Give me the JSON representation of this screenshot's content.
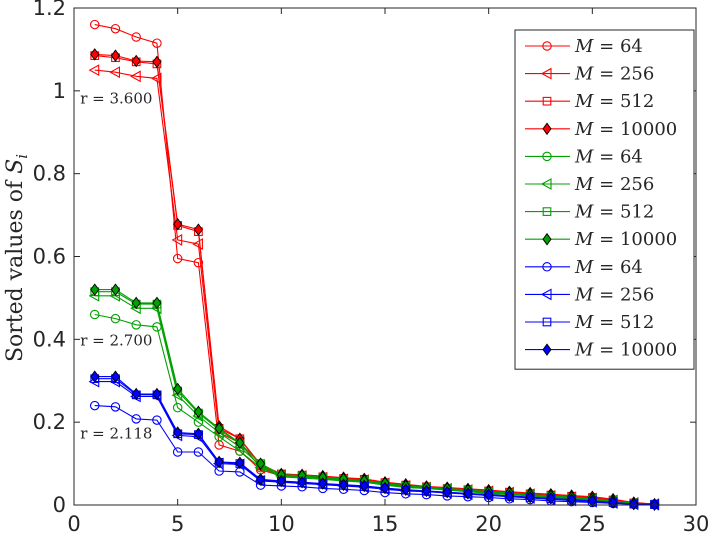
{
  "chart_data": {
    "type": "line",
    "title": "",
    "xlabel": "",
    "ylabel": "Sorted values of S_i",
    "ylabel_prefix": "Sorted values of ",
    "ylabel_symbol": "S",
    "ylabel_subscript": "i",
    "xlim": [
      0,
      30
    ],
    "ylim": [
      0,
      1.2
    ],
    "xticks": [
      0,
      5,
      10,
      15,
      20,
      25,
      30
    ],
    "yticks": [
      0,
      0.2,
      0.4,
      0.6,
      0.8,
      1,
      1.2
    ],
    "xtick_labels": [
      "0",
      "5",
      "10",
      "15",
      "20",
      "25",
      "30"
    ],
    "ytick_labels": [
      "0",
      "0.2",
      "0.4",
      "0.6",
      "0.8",
      "1",
      "1.2"
    ],
    "legend_position": "top-right",
    "annotations": [
      {
        "text": "r = 3.600",
        "x": 0.3,
        "y": 0.97
      },
      {
        "text": "r = 2.700",
        "x": 0.3,
        "y": 0.385
      },
      {
        "text": "r = 2.118",
        "x": 0.3,
        "y": 0.16
      }
    ],
    "series": [
      {
        "name": "M = 64",
        "color": "#ff0000",
        "marker": "circle",
        "filled": false,
        "values": [
          1.16,
          1.15,
          1.13,
          1.115,
          0.595,
          0.585,
          0.145,
          0.13,
          0.085,
          0.07,
          0.068,
          0.065,
          0.06,
          0.058,
          0.05,
          0.045,
          0.04,
          0.038,
          0.035,
          0.032,
          0.028,
          0.025,
          0.02,
          0.018,
          0.015,
          0.01,
          0.005,
          0.002
        ]
      },
      {
        "name": "M = 256",
        "color": "#ff0000",
        "marker": "triangle-left",
        "filled": false,
        "values": [
          1.05,
          1.045,
          1.035,
          1.03,
          0.64,
          0.63,
          0.175,
          0.15,
          0.09,
          0.072,
          0.07,
          0.066,
          0.062,
          0.06,
          0.052,
          0.046,
          0.042,
          0.039,
          0.036,
          0.033,
          0.03,
          0.026,
          0.022,
          0.019,
          0.016,
          0.011,
          0.005,
          0.002
        ]
      },
      {
        "name": "M = 512",
        "color": "#ff0000",
        "marker": "square",
        "filled": false,
        "values": [
          1.085,
          1.08,
          1.07,
          1.065,
          0.675,
          0.66,
          0.185,
          0.16,
          0.095,
          0.075,
          0.072,
          0.068,
          0.064,
          0.062,
          0.054,
          0.048,
          0.044,
          0.04,
          0.037,
          0.034,
          0.031,
          0.027,
          0.024,
          0.021,
          0.018,
          0.012,
          0.005,
          0.002
        ]
      },
      {
        "name": "M = 10000",
        "color": "#ff0000",
        "marker": "diamond",
        "filled": true,
        "values": [
          1.088,
          1.085,
          1.072,
          1.07,
          0.678,
          0.665,
          0.19,
          0.16,
          0.098,
          0.075,
          0.073,
          0.07,
          0.066,
          0.063,
          0.055,
          0.05,
          0.045,
          0.042,
          0.039,
          0.036,
          0.032,
          0.029,
          0.026,
          0.023,
          0.02,
          0.014,
          0.006,
          0.002
        ]
      },
      {
        "name": "M = 64",
        "color": "#00a000",
        "marker": "circle",
        "filled": false,
        "values": [
          0.46,
          0.45,
          0.435,
          0.43,
          0.235,
          0.2,
          0.165,
          0.13,
          0.09,
          0.068,
          0.065,
          0.062,
          0.058,
          0.055,
          0.048,
          0.042,
          0.04,
          0.036,
          0.032,
          0.028,
          0.025,
          0.022,
          0.018,
          0.015,
          0.012,
          0.008,
          0.004,
          0.001
        ]
      },
      {
        "name": "M = 256",
        "color": "#00a000",
        "marker": "triangle-left",
        "filled": false,
        "values": [
          0.505,
          0.505,
          0.475,
          0.475,
          0.265,
          0.215,
          0.175,
          0.14,
          0.095,
          0.07,
          0.068,
          0.064,
          0.06,
          0.057,
          0.05,
          0.044,
          0.041,
          0.038,
          0.034,
          0.03,
          0.027,
          0.023,
          0.02,
          0.017,
          0.013,
          0.009,
          0.004,
          0.001
        ]
      },
      {
        "name": "M = 512",
        "color": "#00a000",
        "marker": "square",
        "filled": false,
        "values": [
          0.515,
          0.515,
          0.485,
          0.485,
          0.275,
          0.222,
          0.182,
          0.148,
          0.1,
          0.072,
          0.07,
          0.066,
          0.062,
          0.058,
          0.052,
          0.045,
          0.042,
          0.039,
          0.035,
          0.031,
          0.028,
          0.024,
          0.021,
          0.018,
          0.014,
          0.01,
          0.004,
          0.001
        ]
      },
      {
        "name": "M = 10000",
        "color": "#00a000",
        "marker": "diamond",
        "filled": true,
        "values": [
          0.52,
          0.52,
          0.488,
          0.488,
          0.28,
          0.225,
          0.185,
          0.15,
          0.1,
          0.073,
          0.071,
          0.067,
          0.063,
          0.059,
          0.053,
          0.046,
          0.043,
          0.04,
          0.036,
          0.032,
          0.029,
          0.025,
          0.022,
          0.019,
          0.015,
          0.01,
          0.004,
          0.001
        ]
      },
      {
        "name": "M = 64",
        "color": "#0000ff",
        "marker": "circle",
        "filled": false,
        "values": [
          0.24,
          0.237,
          0.208,
          0.205,
          0.128,
          0.128,
          0.082,
          0.08,
          0.048,
          0.046,
          0.044,
          0.04,
          0.038,
          0.035,
          0.03,
          0.027,
          0.025,
          0.022,
          0.02,
          0.018,
          0.015,
          0.013,
          0.01,
          0.008,
          0.006,
          0.004,
          0.002,
          0.001
        ]
      },
      {
        "name": "M = 256",
        "color": "#0000ff",
        "marker": "triangle-left",
        "filled": false,
        "values": [
          0.298,
          0.298,
          0.262,
          0.262,
          0.168,
          0.165,
          0.1,
          0.098,
          0.058,
          0.055,
          0.052,
          0.049,
          0.046,
          0.043,
          0.038,
          0.034,
          0.032,
          0.029,
          0.026,
          0.023,
          0.02,
          0.017,
          0.014,
          0.011,
          0.008,
          0.005,
          0.002,
          0.001
        ]
      },
      {
        "name": "M = 512",
        "color": "#0000ff",
        "marker": "square",
        "filled": false,
        "values": [
          0.305,
          0.305,
          0.266,
          0.266,
          0.172,
          0.17,
          0.103,
          0.1,
          0.06,
          0.057,
          0.054,
          0.051,
          0.048,
          0.045,
          0.04,
          0.036,
          0.033,
          0.03,
          0.027,
          0.024,
          0.021,
          0.018,
          0.015,
          0.012,
          0.009,
          0.006,
          0.002,
          0.001
        ]
      },
      {
        "name": "M = 10000",
        "color": "#0000ff",
        "marker": "diamond",
        "filled": true,
        "values": [
          0.31,
          0.31,
          0.268,
          0.268,
          0.175,
          0.172,
          0.104,
          0.102,
          0.062,
          0.058,
          0.055,
          0.052,
          0.049,
          0.046,
          0.041,
          0.037,
          0.034,
          0.031,
          0.028,
          0.025,
          0.022,
          0.019,
          0.016,
          0.013,
          0.01,
          0.006,
          0.002,
          0.001
        ]
      }
    ]
  }
}
